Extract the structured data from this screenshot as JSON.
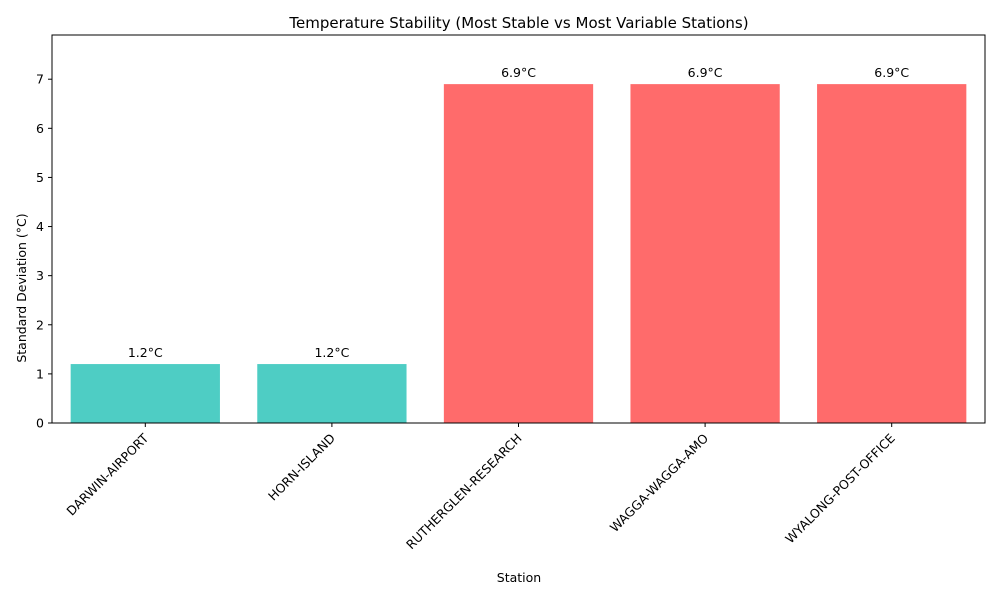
{
  "chart_data": {
    "type": "bar",
    "title": "Temperature Stability (Most Stable vs Most Variable Stations)",
    "xlabel": "Station",
    "ylabel": "Standard Deviation (°C)",
    "categories": [
      "DARWIN-AIRPORT",
      "HORN-ISLAND",
      "RUTHERGLEN-RESEARCH",
      "WAGGA-WAGGA-AMO",
      "WYALONG-POST-OFFICE"
    ],
    "values": [
      1.2,
      1.2,
      6.9,
      6.9,
      6.9
    ],
    "value_labels": [
      "1.2°C",
      "1.2°C",
      "6.9°C",
      "6.9°C",
      "6.9°C"
    ],
    "bar_colors": [
      "#4ecdc4",
      "#4ecdc4",
      "#ff6b6b",
      "#ff6b6b",
      "#ff6b6b"
    ],
    "ylim": [
      0,
      7.9
    ],
    "yticks": [
      0,
      1,
      2,
      3,
      4,
      5,
      6,
      7
    ],
    "grid": false,
    "legend": "none"
  }
}
